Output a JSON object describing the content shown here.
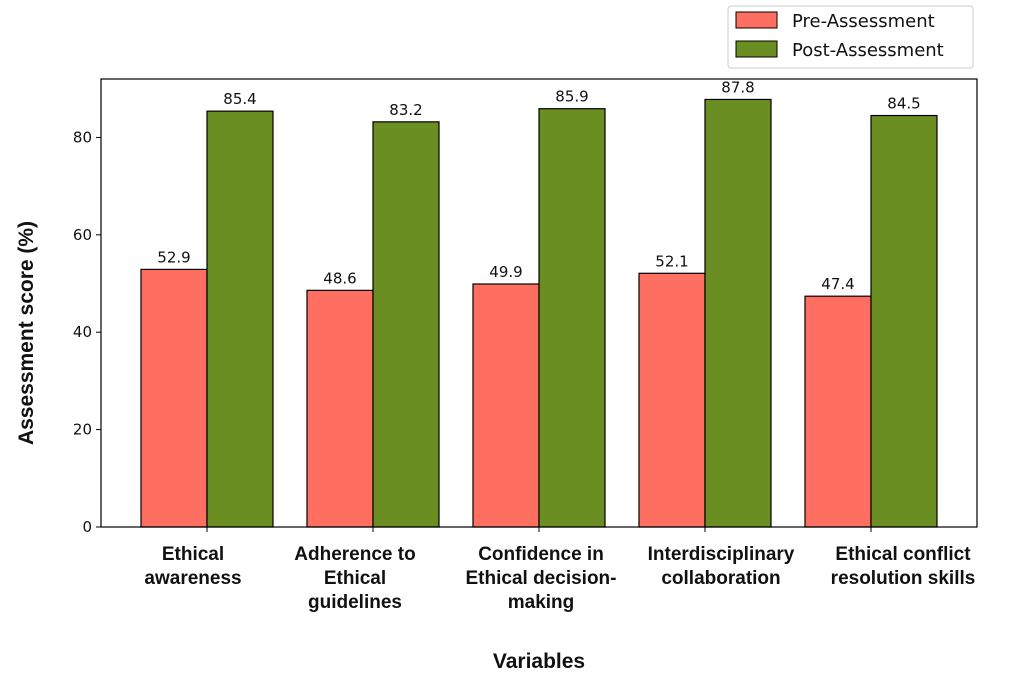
{
  "chart_data": {
    "type": "bar",
    "title": "",
    "xlabel": "Variables",
    "ylabel": "Assessment score (%)",
    "ylim": [
      0,
      92
    ],
    "yticks": [
      0,
      20,
      40,
      60,
      80
    ],
    "grid": false,
    "legend_position": "top-right",
    "categories": [
      [
        "Ethical",
        "awareness"
      ],
      [
        "Adherence to",
        "Ethical",
        "guidelines"
      ],
      [
        "Confidence in",
        "Ethical decision-",
        "making"
      ],
      [
        "Interdisciplinary",
        "collaboration"
      ],
      [
        "Ethical conflict",
        "resolution skills"
      ]
    ],
    "series": [
      {
        "name": "Pre-Assessment",
        "color": "#ff6f61",
        "values": [
          52.9,
          48.6,
          49.9,
          52.1,
          47.4
        ]
      },
      {
        "name": "Post-Assessment",
        "color": "#6b8e23",
        "values": [
          85.4,
          83.2,
          85.9,
          87.8,
          84.5
        ]
      }
    ]
  }
}
